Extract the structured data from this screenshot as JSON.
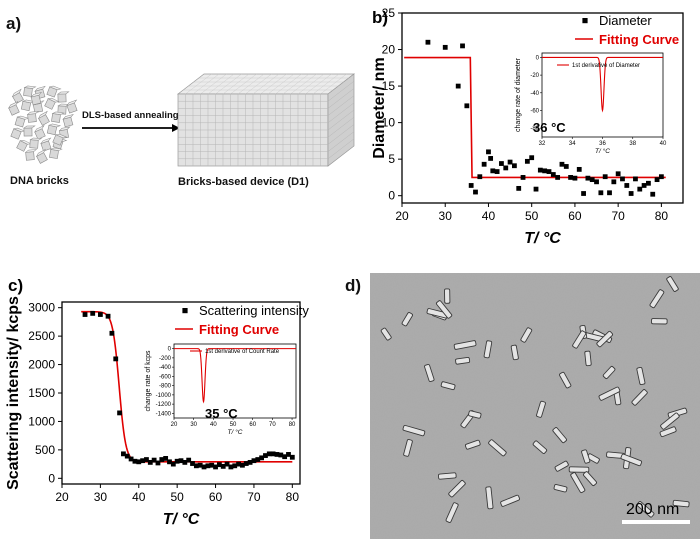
{
  "panels": {
    "a": {
      "letter": "a)",
      "left_label": "DNA bricks",
      "arrow_label": "DLS-based annealing",
      "right_label": "Bricks-based device (D1)"
    },
    "d": {
      "letter": "d)",
      "scale_bar_label": "200 nm"
    }
  },
  "chart_data": [
    {
      "panel": "b)",
      "type": "scatter",
      "xlabel": "T/ °C",
      "ylabel": "Diameter/ nm",
      "xlim": [
        20,
        85
      ],
      "ylim": [
        -1,
        25
      ],
      "xticks": [
        20,
        30,
        40,
        50,
        60,
        70,
        80
      ],
      "yticks": [
        0,
        5,
        10,
        15,
        20,
        25
      ],
      "legend": [
        "Diameter",
        "Fitting Curve"
      ],
      "legend_position": "top-right",
      "series": [
        {
          "name": "Diameter",
          "kind": "points",
          "x": [
            26,
            30,
            33,
            34,
            35,
            36,
            37,
            38,
            39,
            40,
            40.5,
            41,
            42,
            43,
            44,
            45,
            46,
            47,
            48,
            49,
            50,
            51,
            52,
            53,
            54,
            55,
            56,
            57,
            58,
            59,
            60,
            61,
            62,
            63,
            64,
            65,
            66,
            67,
            68,
            69,
            70,
            71,
            72,
            73,
            74,
            75,
            76,
            77,
            78,
            79,
            80
          ],
          "y": [
            21,
            20.3,
            15,
            20.5,
            12.3,
            1.4,
            0.5,
            2.6,
            4.3,
            6,
            5.1,
            3.4,
            3.3,
            4.4,
            3.8,
            4.6,
            4.1,
            1.0,
            2.5,
            4.7,
            5.2,
            0.9,
            3.5,
            3.4,
            3.3,
            2.9,
            2.5,
            4.3,
            4.0,
            2.5,
            2.4,
            3.6,
            0.3,
            2.4,
            2.2,
            1.9,
            0.4,
            2.6,
            0.4,
            1.9,
            3.0,
            2.3,
            1.4,
            0.3,
            2.3,
            0.9,
            1.4,
            1.7,
            0.2,
            2.2,
            2.6
          ]
        },
        {
          "name": "Fitting Curve",
          "kind": "step",
          "x0": 20.5,
          "x1": 81,
          "y_high": 18.9,
          "y_low": 2.5,
          "transition": 36
        }
      ],
      "inset": {
        "legend": "1st derivative of Diameter",
        "ylabel": "change rate of diameter",
        "xlabel": "T/ °C",
        "xlim": [
          32,
          40
        ],
        "ylim": [
          -90,
          5
        ],
        "xticks": [
          32,
          34,
          36,
          38,
          40
        ],
        "yticks": [
          0,
          -20,
          -40,
          -60,
          -80
        ],
        "peak_x": 36,
        "peak_y": -60,
        "annotation": "36 °C"
      },
      "colors": {
        "points": "#000000",
        "fit": "#e00000"
      }
    },
    {
      "panel": "c)",
      "type": "scatter",
      "xlabel": "T/ °C",
      "ylabel": "Scattering intensity/ kcps",
      "xlim": [
        20,
        82
      ],
      "ylim": [
        -100,
        3100
      ],
      "xticks": [
        20,
        30,
        40,
        50,
        60,
        70,
        80
      ],
      "yticks": [
        0,
        500,
        1000,
        1500,
        2000,
        2500,
        3000
      ],
      "legend": [
        "Scattering intensity",
        "Fitting Curve"
      ],
      "legend_position": "top-right",
      "series": [
        {
          "name": "Scattering intensity",
          "kind": "points",
          "x": [
            26,
            28,
            30,
            32,
            33,
            34,
            35,
            36,
            37,
            38,
            39,
            40,
            41,
            42,
            43,
            44,
            45,
            46,
            47,
            48,
            49,
            50,
            51,
            52,
            53,
            54,
            55,
            56,
            57,
            58,
            59,
            60,
            61,
            62,
            63,
            64,
            65,
            66,
            67,
            68,
            69,
            70,
            71,
            72,
            73,
            74,
            75,
            76,
            77,
            78,
            79,
            80
          ],
          "y": [
            2880,
            2900,
            2880,
            2850,
            2550,
            2100,
            1150,
            430,
            390,
            340,
            300,
            290,
            310,
            330,
            280,
            320,
            270,
            330,
            350,
            290,
            250,
            300,
            310,
            280,
            320,
            260,
            220,
            230,
            200,
            220,
            230,
            200,
            240,
            210,
            250,
            200,
            220,
            250,
            230,
            260,
            280,
            310,
            330,
            360,
            400,
            430,
            430,
            420,
            410,
            380,
            420,
            370
          ]
        },
        {
          "name": "Fitting Curve",
          "kind": "sigmoid",
          "x0": 25,
          "x1": 80,
          "y_high": 2930,
          "y_low": 290,
          "center": 34.9,
          "width": 0.85
        }
      ],
      "inset": {
        "legend": "1st derivative of Count Rate",
        "ylabel": "change rate of kcps",
        "xlabel": "T/ °C",
        "xlim": [
          20,
          82
        ],
        "ylim": [
          -1500,
          100
        ],
        "xticks": [
          20,
          30,
          40,
          50,
          60,
          70,
          80
        ],
        "yticks": [
          0,
          -200,
          -400,
          -600,
          -800,
          -1000,
          -1200,
          -1400
        ],
        "peak_x": 35,
        "peak_y": -1150,
        "annotation": "35 °C"
      },
      "colors": {
        "points": "#000000",
        "fit": "#e00000"
      }
    }
  ]
}
